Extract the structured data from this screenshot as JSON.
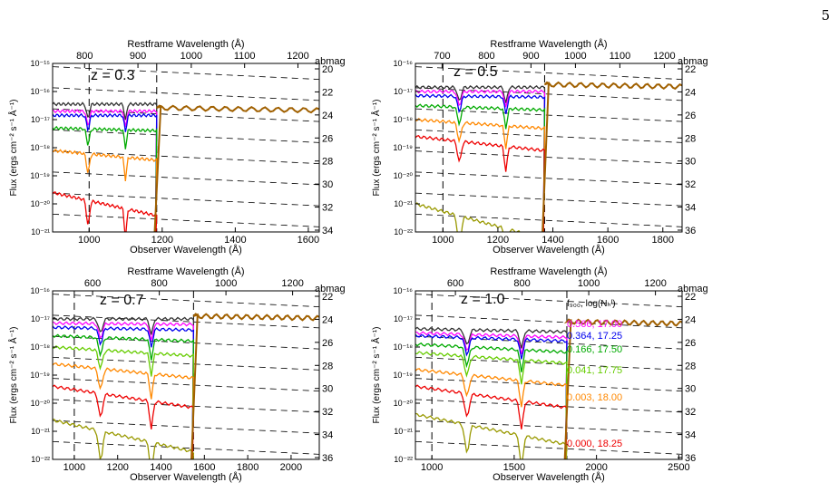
{
  "page_number": "5",
  "common": {
    "ylabel": "Flux (ergs cm⁻² s⁻¹ Å⁻¹)",
    "xlabel": "Observer Wavelength (Å)",
    "top_label": "Restframe Wavelength (Å)",
    "right_label": "abmag"
  },
  "legend": {
    "header": "f₉₀₀, log(Nₕᴵ)",
    "entries": [
      {
        "text": "0.566, 17.00",
        "color": "#ff00ff"
      },
      {
        "text": "0.364, 17.25",
        "color": "#0000ee"
      },
      {
        "text": "0.166, 17.50",
        "color": "#00aa00"
      },
      {
        "text": "0.041, 17.75",
        "color": "#66cc00"
      },
      {
        "text": "0.003, 18.00",
        "color": "#ff8800"
      },
      {
        "text": "0.000, 18.25",
        "color": "#ee0000"
      }
    ]
  },
  "series_colors": {
    "base": "#333333",
    "s17_00": "#ff00ff",
    "s17_25": "#0000ee",
    "s17_50": "#00aa00",
    "s17_75": "#66cc00",
    "s18_00": "#ff8800",
    "s18_25": "#ee0000",
    "s18_50": "#999900",
    "ramp": "#a06000"
  },
  "chart_data": [
    {
      "type": "line",
      "panel_label": "z = 0.3",
      "xlim": [
        900,
        1630
      ],
      "ylim_log10": [
        -21,
        -15
      ],
      "xticks": [
        1000,
        1200,
        1400,
        1600
      ],
      "yticks": [
        "10⁻²¹",
        "10⁻²⁰",
        "10⁻¹⁹",
        "10⁻¹⁸",
        "10⁻¹⁷",
        "10⁻¹⁶",
        "10⁻¹⁵"
      ],
      "top_ticks": [
        "800",
        "900",
        "1000",
        "1100",
        "1200"
      ],
      "abmag_ticks": [
        "20",
        "22",
        "24",
        "26",
        "28",
        "30",
        "32",
        "34"
      ],
      "vlines": [
        1000,
        1185
      ],
      "break": 1185,
      "continuum_log10": -16.58,
      "series": [
        {
          "key": "base",
          "level": -16.45
        },
        {
          "key": "s17_00",
          "level": -16.7
        },
        {
          "key": "s17_25",
          "level": -16.85
        },
        {
          "key": "s17_50",
          "level": -17.3
        },
        {
          "key": "s18_00",
          "level": -18.1
        },
        {
          "key": "s18_25",
          "level": -19.6
        }
      ]
    },
    {
      "type": "line",
      "panel_label": "z = 0.5",
      "xlim": [
        900,
        1870
      ],
      "ylim_log10": [
        -22,
        -16
      ],
      "xticks": [
        1000,
        1200,
        1400,
        1600,
        1800
      ],
      "yticks": [
        "10⁻²²",
        "10⁻²¹",
        "10⁻²⁰",
        "10⁻¹⁹",
        "10⁻¹⁸",
        "10⁻¹⁷",
        "10⁻¹⁶"
      ],
      "top_ticks": [
        "700",
        "800",
        "900",
        "1000",
        "1100",
        "1200"
      ],
      "abmag_ticks": [
        "22",
        "24",
        "26",
        "28",
        "30",
        "32",
        "34",
        "36"
      ],
      "vlines": [
        1000,
        1370
      ],
      "break": 1370,
      "continuum_log10": -16.75,
      "series": [
        {
          "key": "base",
          "level": -16.85
        },
        {
          "key": "s17_00",
          "level": -17.0
        },
        {
          "key": "s17_25",
          "level": -17.15
        },
        {
          "key": "s17_50",
          "level": -17.5
        },
        {
          "key": "s18_00",
          "level": -18.0
        },
        {
          "key": "s18_25",
          "level": -18.6
        },
        {
          "key": "s18_50",
          "level": -21.0
        }
      ]
    },
    {
      "type": "line",
      "panel_label": "z = 0.7",
      "xlim": [
        900,
        2130
      ],
      "ylim_log10": [
        -22,
        -16
      ],
      "xticks": [
        1000,
        1200,
        1400,
        1600,
        1800,
        2000
      ],
      "yticks": [
        "10⁻²²",
        "10⁻²¹",
        "10⁻²⁰",
        "10⁻¹⁹",
        "10⁻¹⁸",
        "10⁻¹⁷",
        "10⁻¹⁶"
      ],
      "top_ticks": [
        "600",
        "800",
        "1000",
        "1200"
      ],
      "abmag_ticks": [
        "22",
        "24",
        "26",
        "28",
        "30",
        "32",
        "34",
        "36"
      ],
      "vlines": [
        1000,
        1550
      ],
      "break": 1550,
      "continuum_log10": -16.9,
      "series": [
        {
          "key": "base",
          "level": -17.0
        },
        {
          "key": "s17_00",
          "level": -17.15
        },
        {
          "key": "s17_25",
          "level": -17.3
        },
        {
          "key": "s17_50",
          "level": -17.6
        },
        {
          "key": "s17_75",
          "level": -18.0
        },
        {
          "key": "s18_00",
          "level": -18.6
        },
        {
          "key": "s18_25",
          "level": -19.4
        },
        {
          "key": "s18_50",
          "level": -20.6
        }
      ]
    },
    {
      "type": "line",
      "panel_label": "z = 1.0",
      "xlim": [
        900,
        2520
      ],
      "ylim_log10": [
        -22,
        -16
      ],
      "xticks": [
        1000,
        1500,
        2000,
        2500
      ],
      "yticks": [
        "10⁻²²",
        "10⁻²¹",
        "10⁻²⁰",
        "10⁻¹⁹",
        "10⁻¹⁸",
        "10⁻¹⁷",
        "10⁻¹⁶"
      ],
      "top_ticks": [
        "600",
        "800",
        "1000",
        "1200"
      ],
      "abmag_ticks": [
        "22",
        "24",
        "26",
        "28",
        "30",
        "32",
        "34",
        "36"
      ],
      "vlines": [
        1000,
        1820
      ],
      "break": 1820,
      "continuum_log10": -17.1,
      "series": [
        {
          "key": "base",
          "level": -17.35
        },
        {
          "key": "s17_00",
          "level": -17.5
        },
        {
          "key": "s17_25",
          "level": -17.6
        },
        {
          "key": "s17_50",
          "level": -17.9
        },
        {
          "key": "s17_75",
          "level": -18.2
        },
        {
          "key": "s18_00",
          "level": -18.8
        },
        {
          "key": "s18_25",
          "level": -19.4
        },
        {
          "key": "s18_50",
          "level": -20.4
        }
      ]
    }
  ]
}
